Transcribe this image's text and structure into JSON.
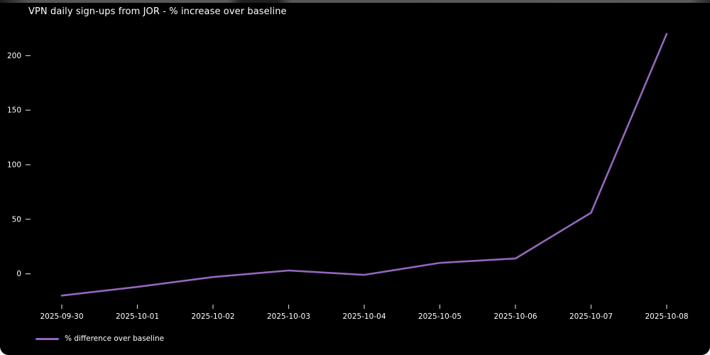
{
  "chart_data": {
    "type": "line",
    "title": "VPN daily sign-ups from JOR - % increase over baseline",
    "categories": [
      "2025-09-30",
      "2025-10-01",
      "2025-10-02",
      "2025-10-03",
      "2025-10-04",
      "2025-10-05",
      "2025-10-06",
      "2025-10-07",
      "2025-10-08"
    ],
    "series": [
      {
        "name": "% difference over baseline",
        "color": "#9467bd",
        "values": [
          -20,
          -12,
          -3,
          3,
          -1,
          10,
          14,
          56,
          220
        ]
      }
    ],
    "xlabel": "",
    "ylabel": "",
    "yticks": [
      0,
      50,
      100,
      150,
      200
    ],
    "ylim": [
      -25,
      225
    ],
    "grid": false,
    "legend_position": "lower-left",
    "colors": {
      "background": "#000000",
      "text": "#ffffff",
      "tick": "#c8c8c8"
    }
  }
}
